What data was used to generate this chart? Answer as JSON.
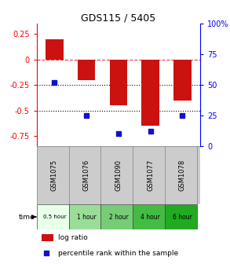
{
  "title": "GDS115 / 5405",
  "samples": [
    "GSM1075",
    "GSM1076",
    "GSM1090",
    "GSM1077",
    "GSM1078"
  ],
  "time_labels": [
    "0.5 hour",
    "1 hour",
    "2 hour",
    "4 hour",
    "6 hour"
  ],
  "time_colors": [
    "#e8ffe8",
    "#99dd99",
    "#77cc77",
    "#44bb44",
    "#22aa22"
  ],
  "log_ratios": [
    0.2,
    -0.2,
    -0.45,
    -0.65,
    -0.4
  ],
  "percentile_ranks": [
    52,
    25,
    10,
    12,
    25
  ],
  "bar_color": "#cc1111",
  "dot_color": "#1111cc",
  "ylim_left": [
    -0.85,
    0.35
  ],
  "ylim_right": [
    0,
    100
  ],
  "yticks_left": [
    0.25,
    0.0,
    -0.25,
    -0.5,
    -0.75
  ],
  "yticks_right": [
    100,
    75,
    50,
    25,
    0
  ],
  "hline_y": 0.0,
  "dotted_lines": [
    -0.25,
    -0.5
  ],
  "plot_bg": "#ffffff",
  "header_bg": "#cccccc"
}
